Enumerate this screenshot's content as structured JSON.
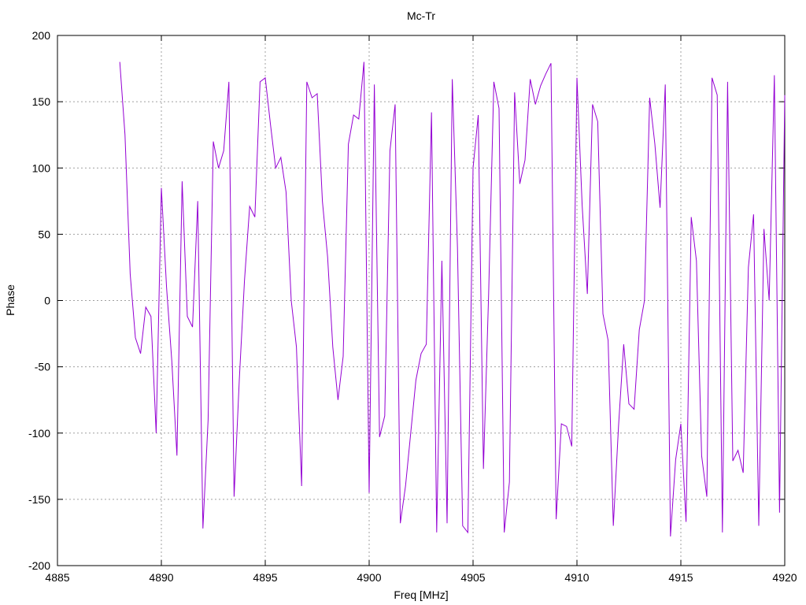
{
  "chart_data": {
    "type": "line",
    "title": "Mc-Tr",
    "xlabel": "Freq [MHz]",
    "ylabel": "Phase",
    "xlim": [
      4885,
      4920
    ],
    "ylim": [
      -200,
      200
    ],
    "xticks": [
      4885,
      4890,
      4895,
      4900,
      4905,
      4910,
      4915,
      4920
    ],
    "yticks": [
      -200,
      -150,
      -100,
      -50,
      0,
      50,
      100,
      150,
      200
    ],
    "grid": true,
    "colors": {
      "series": "#9400d3"
    },
    "series": [
      {
        "x": [
          4888.0,
          4888.25,
          4888.5,
          4888.75,
          4889.0,
          4889.25,
          4889.5,
          4889.75,
          4890.0,
          4890.25,
          4890.5,
          4890.75,
          4891.0,
          4891.25,
          4891.5,
          4891.75,
          4892.0,
          4892.25,
          4892.5,
          4892.75,
          4893.0,
          4893.25,
          4893.5,
          4893.75,
          4894.0,
          4894.25,
          4894.5,
          4894.75,
          4895.0,
          4895.25,
          4895.5,
          4895.75,
          4896.0,
          4896.25,
          4896.5,
          4896.75,
          4897.0,
          4897.25,
          4897.5,
          4897.75,
          4898.0,
          4898.25,
          4898.5,
          4898.75,
          4899.0,
          4899.25,
          4899.5,
          4899.75,
          4900.0,
          4900.25,
          4900.5,
          4900.75,
          4901.0,
          4901.25,
          4901.5,
          4901.75,
          4902.0,
          4902.25,
          4902.5,
          4902.75,
          4903.0,
          4903.25,
          4903.5,
          4903.75,
          4904.0,
          4904.25,
          4904.5,
          4904.75,
          4905.0,
          4905.25,
          4905.5,
          4905.75,
          4906.0,
          4906.25,
          4906.5,
          4906.75,
          4907.0,
          4907.25,
          4907.5,
          4907.75,
          4908.0,
          4908.25,
          4908.5,
          4908.75,
          4909.0,
          4909.25,
          4909.5,
          4909.75,
          4910.0,
          4910.25,
          4910.5,
          4910.75,
          4911.0,
          4911.25,
          4911.5,
          4911.75,
          4912.0,
          4912.25,
          4912.5,
          4912.75,
          4913.0,
          4913.25,
          4913.5,
          4913.75,
          4914.0,
          4914.25,
          4914.5,
          4914.75,
          4915.0,
          4915.25,
          4915.5,
          4915.75,
          4916.0,
          4916.25,
          4916.5,
          4916.75,
          4917.0,
          4917.25,
          4917.5,
          4917.75,
          4918.0,
          4918.25,
          4918.5,
          4918.75,
          4919.0,
          4919.25,
          4919.5,
          4919.75,
          4920.0
        ],
        "values": [
          180,
          125,
          20,
          -28,
          -40,
          -5,
          -12,
          -100,
          85,
          10,
          -45,
          -117,
          90,
          -12,
          -20,
          75,
          -172,
          -90,
          120,
          100,
          113,
          165,
          -148,
          -60,
          15,
          71,
          63,
          165,
          168,
          133,
          100,
          108,
          82,
          0,
          -35,
          -140,
          165,
          153,
          156,
          75,
          33,
          -35,
          -75,
          -42,
          118,
          140,
          137,
          180,
          -145,
          163,
          -103,
          -87,
          113,
          148,
          -168,
          -140,
          -100,
          -60,
          -40,
          -33,
          142,
          -175,
          30,
          -168,
          167,
          40,
          -170,
          -175,
          100,
          140,
          -127,
          5,
          165,
          145,
          -175,
          -137,
          157,
          88,
          106,
          167,
          148,
          162,
          171,
          179,
          -165,
          -93,
          -95,
          -110,
          168,
          72,
          5,
          148,
          135,
          -10,
          -30,
          -170,
          -95,
          -33,
          -78,
          -82,
          -22,
          0,
          153,
          118,
          70,
          163,
          -178,
          -120,
          -93,
          -167,
          63,
          30,
          -117,
          -148,
          168,
          155,
          -175,
          165,
          -121,
          -113,
          -130,
          25,
          65,
          -170,
          54,
          0,
          170,
          -160,
          155
        ]
      }
    ]
  }
}
